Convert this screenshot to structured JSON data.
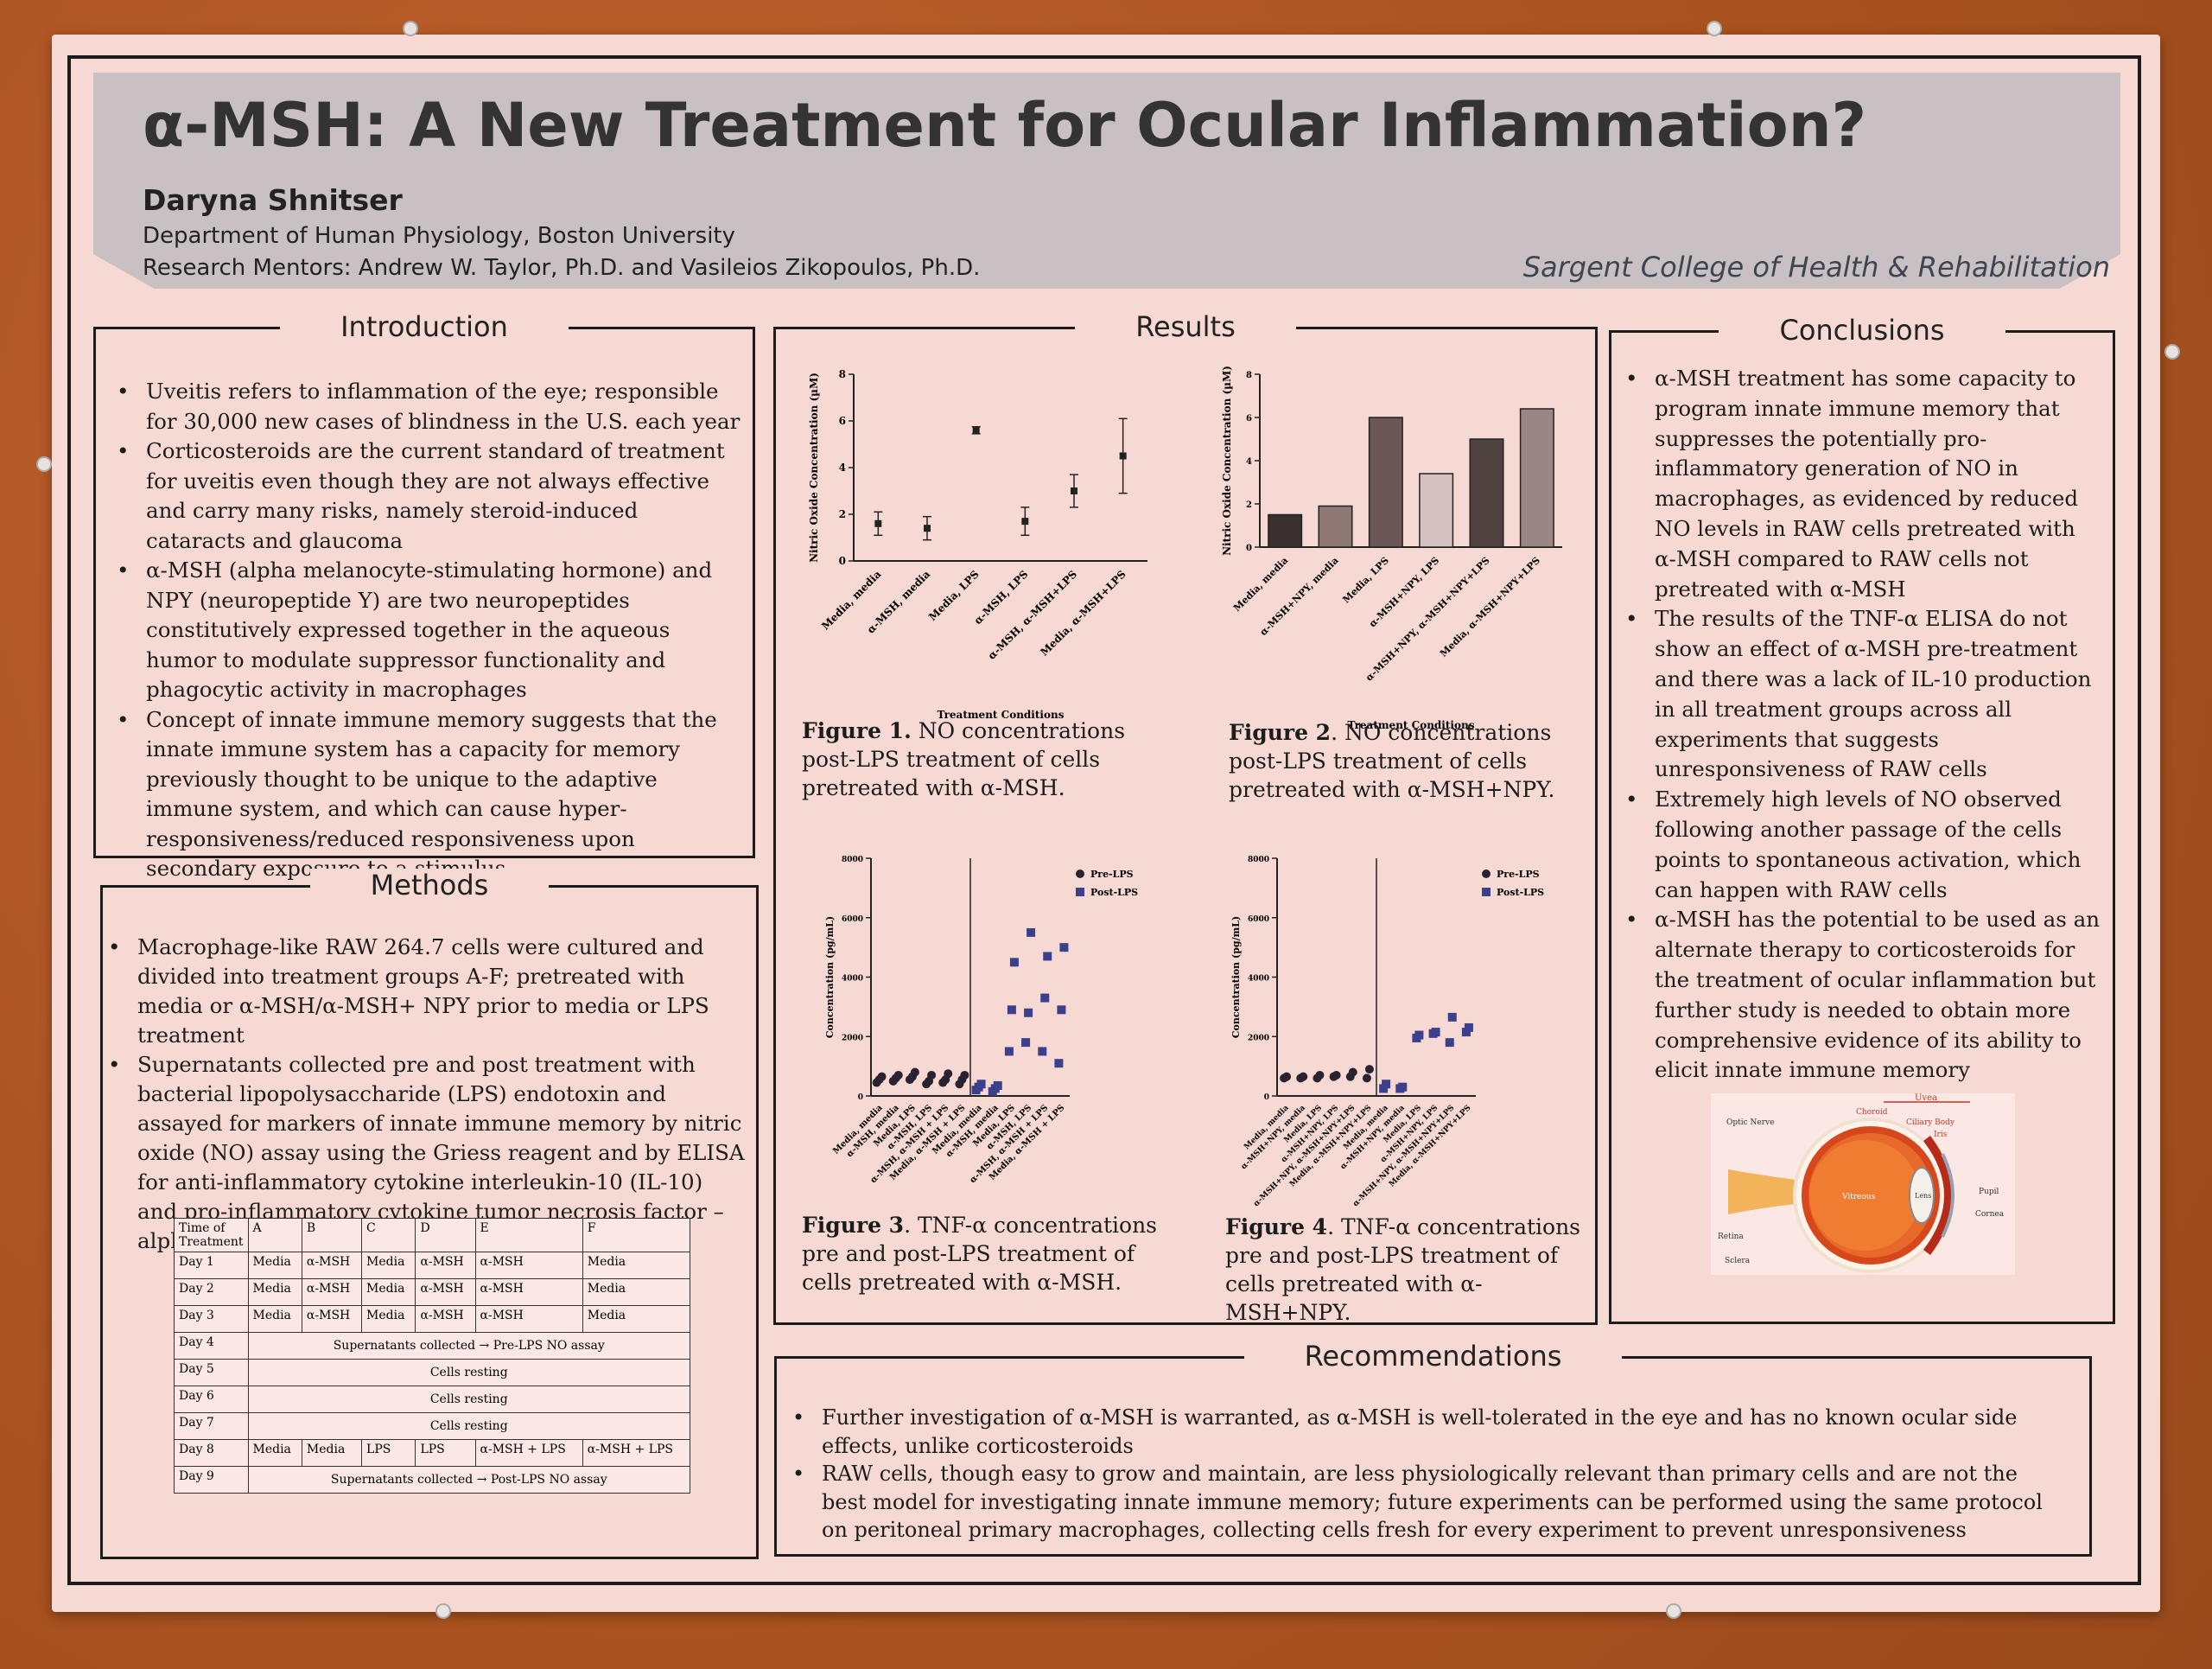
{
  "header": {
    "title": "α-MSH: A New Treatment for Ocular Inflammation?",
    "author": "Daryna Shnitser",
    "department": "Department of Human Physiology, Boston University",
    "mentors": "Research Mentors:  Andrew W. Taylor, Ph.D. and Vasileios Zikopoulos, Ph.D.",
    "college": "Sargent College of Health & Rehabilitation"
  },
  "introduction": {
    "heading": "Introduction",
    "items": [
      "Uveitis refers to inflammation of the eye; responsible for 30,000 new cases of blindness in the U.S. each year",
      "Corticosteroids are the current standard of treatment for uveitis even though they are not always effective and carry many risks, namely steroid-induced cataracts and glaucoma",
      "α-MSH (alpha melanocyte-stimulating hormone) and NPY (neuropeptide Y) are two neuropeptides constitutively expressed together in the aqueous humor to modulate suppressor functionality and phagocytic activity in macrophages",
      "Concept of innate immune memory suggests that the innate immune system has a capacity for memory previously thought to be unique to the adaptive immune system, and which can cause hyper-responsiveness/reduced responsiveness upon secondary exposure to a stimulus"
    ]
  },
  "methods": {
    "heading": "Methods",
    "items": [
      "Macrophage-like RAW 264.7 cells were cultured and divided into treatment groups A-F; pretreated with media or α-MSH/α-MSH+ NPY prior to media or LPS treatment",
      "Supernatants collected pre and post treatment with bacterial lipopolysaccharide (LPS) endotoxin and assayed for markers of innate immune memory by nitric oxide (NO) assay using the Griess reagent and by ELISA for anti-inflammatory cytokine interleukin-10 (IL-10) and pro-inflammatory cytokine tumor necrosis factor – alpha (TNF-α)"
    ],
    "table": {
      "header": [
        "Time of Treatment",
        "A",
        "B",
        "C",
        "D",
        "E",
        "F"
      ],
      "day1": [
        "Day 1",
        "Media",
        "α-MSH",
        "Media",
        "α-MSH",
        "α-MSH",
        "Media"
      ],
      "day2": [
        "Day 2",
        "Media",
        "α-MSH",
        "Media",
        "α-MSH",
        "α-MSH",
        "Media"
      ],
      "day3": [
        "Day 3",
        "Media",
        "α-MSH",
        "Media",
        "α-MSH",
        "α-MSH",
        "Media"
      ],
      "day4": [
        "Day 4",
        "Supernatants collected → Pre-LPS NO assay"
      ],
      "day5": [
        "Day 5",
        "Cells resting"
      ],
      "day6": [
        "Day 6",
        "Cells resting"
      ],
      "day7": [
        "Day 7",
        "Cells resting"
      ],
      "day8": [
        "Day 8",
        "Media",
        "Media",
        "LPS",
        "LPS",
        "α-MSH + LPS",
        "α-MSH + LPS"
      ],
      "day9": [
        "Day 9",
        "Supernatants collected → Post-LPS NO assay"
      ]
    }
  },
  "results": {
    "heading": "Results",
    "fig1_label": "Figure 1.",
    "fig1_caption": " NO concentrations post-LPS treatment of cells pretreated with α-MSH.",
    "fig2_label": "Figure 2",
    "fig2_caption": ". NO concentrations post-LPS treatment of cells pretreated with α-MSH+NPY.",
    "fig3_label": "Figure 3",
    "fig3_caption": ". TNF-α concentrations pre and post-LPS treatment of cells pretreated with α-MSH.",
    "fig4_label": "Figure 4",
    "fig4_caption": ". TNF-α concentrations pre and post-LPS treatment of cells pretreated with α-MSH+NPY."
  },
  "chart_data": [
    {
      "type": "scatter",
      "ylabel": "Nitric Oxide Concentration (µM)",
      "xlabel": "Treatment Conditions",
      "categories": [
        "Media, media",
        "α-MSH, media",
        "Media, LPS",
        "α-MSH, LPS",
        "α-MSH, α-MSH+LPS",
        "Media, α-MSH+LPS"
      ],
      "values": [
        1.6,
        1.4,
        5.6,
        1.7,
        3.0,
        4.5
      ],
      "errors": [
        0.5,
        0.5,
        0.15,
        0.6,
        0.7,
        1.6
      ],
      "ylim": [
        0,
        8
      ],
      "yticks": [
        "0",
        "2",
        "4",
        "6",
        "8"
      ]
    },
    {
      "type": "bar",
      "ylabel": "Nitric Oxide Concentration (µM)",
      "xlabel": "Treatment Conditions",
      "categories": [
        "Media, media",
        "α-MSH+NPY, media",
        "Media, LPS",
        "α-MSH+NPY, LPS",
        "α-MSH+NPY, α-MSH+NPY+LPS",
        "Media, α-MSH+NPY+LPS"
      ],
      "values": [
        1.5,
        1.9,
        6.0,
        3.4,
        5.0,
        6.4
      ],
      "colors": [
        "#3a3030",
        "#8e7874",
        "#6b5856",
        "#d3c2bf",
        "#4f4240",
        "#9a8783"
      ],
      "ylim": [
        0,
        8
      ],
      "yticks": [
        "0",
        "2",
        "4",
        "6",
        "8"
      ]
    },
    {
      "type": "scatter",
      "ylabel": "Concentration (pg/mL)",
      "legend": [
        "Pre-LPS",
        "Post-LPS"
      ],
      "categories": [
        "Media, media",
        "α-MSH, media",
        "Media, LPS",
        "α-MSH, LPS",
        "α-MSH, α-MSH + LPS",
        "Media, α-MSH + LPS",
        "Media, media",
        "α-MSH, media",
        "Media, LPS",
        "α-MSH, LPS",
        "α-MSH, α-MSH + LPS",
        "Media, α-MSH + LPS"
      ],
      "series": [
        {
          "name": "Pre-LPS",
          "groups": [
            [
              450,
              550,
              650
            ],
            [
              500,
              600,
              700
            ],
            [
              550,
              650,
              800
            ],
            [
              400,
              500,
              700
            ],
            [
              450,
              550,
              750
            ],
            [
              400,
              550,
              700
            ]
          ]
        },
        {
          "name": "Post-LPS",
          "groups": [
            [
              200,
              300,
              400
            ],
            [
              150,
              250,
              350
            ],
            [
              1500,
              2900,
              4500
            ],
            [
              1800,
              2800,
              5500
            ],
            [
              1500,
              3300,
              4700
            ],
            [
              1100,
              2900,
              5000
            ]
          ]
        }
      ],
      "ylim": [
        0,
        8000
      ],
      "yticks": [
        "0",
        "2000",
        "4000",
        "6000",
        "8000"
      ]
    },
    {
      "type": "scatter",
      "ylabel": "Concentration (pg/mL)",
      "legend": [
        "Pre-LPS",
        "Post-LPS"
      ],
      "categories": [
        "Media, media",
        "α-MSH+NPY, media",
        "Media, LPS",
        "α-MSH+NPY, LPS",
        "α-MSH+NPY, α-MSH+NPY+LPS",
        "Media, α-MSH+NPY+LPS",
        "Media, media",
        "α-MSH+NPY, media",
        "Media, LPS",
        "α-MSH+NPY, LPS",
        "α-MSH+NPY, α-MSH+NPY+LPS",
        "Media, α-MSH+NPY+LPS"
      ],
      "series": [
        {
          "name": "Pre-LPS",
          "groups": [
            [
              600,
              650
            ],
            [
              600,
              650
            ],
            [
              600,
              700
            ],
            [
              650,
              700
            ],
            [
              650,
              800
            ],
            [
              600,
              900
            ]
          ]
        },
        {
          "name": "Post-LPS",
          "groups": [
            [
              250,
              400
            ],
            [
              250,
              300
            ],
            [
              1950,
              2050
            ],
            [
              2100,
              2150
            ],
            [
              1800,
              2650
            ],
            [
              2150,
              2300
            ]
          ]
        }
      ],
      "ylim": [
        0,
        8000
      ],
      "yticks": [
        "0",
        "2000",
        "4000",
        "6000",
        "8000"
      ]
    }
  ],
  "conclusions": {
    "heading": "Conclusions",
    "items": [
      "α-MSH treatment has some capacity to program innate immune memory that suppresses the potentially pro-inflammatory generation of NO in macrophages, as evidenced by reduced NO levels in RAW cells pretreated with α-MSH compared to RAW cells not pretreated with α-MSH",
      "The results of the TNF-α ELISA do not show an effect of α-MSH pre-treatment and there was a lack of IL-10 production in all treatment groups across all experiments that suggests unresponsiveness of RAW cells",
      " Extremely high levels of NO observed following another passage of the cells points to spontaneous activation, which can happen with RAW cells",
      "α-MSH has the potential to be used as an alternate therapy to corticosteroids for the treatment of ocular inflammation but further study is needed to obtain more comprehensive evidence of its ability to elicit innate immune memory"
    ],
    "eye_labels": {
      "uvea": "Uvea",
      "choroid": "Choroid",
      "ciliary": "Ciliary Body",
      "iris": "Iris",
      "optic": "Optic Nerve",
      "vitreous": "Vitreous",
      "lens": "Lens",
      "pupil": "Pupil",
      "cornea": "Cornea",
      "retina": "Retina",
      "sclera": "Sclera"
    }
  },
  "recommendations": {
    "heading": "Recommendations",
    "items": [
      "Further investigation of α-MSH is warranted, as α-MSH is well-tolerated in the eye and has no known ocular side effects, unlike corticosteroids",
      "RAW cells, though easy to grow and maintain, are less physiologically relevant than primary cells and are not the best model for investigating innate immune memory; future experiments can be performed using the same protocol on peritoneal primary macrophages, collecting cells fresh for every experiment to prevent unresponsiveness"
    ]
  }
}
